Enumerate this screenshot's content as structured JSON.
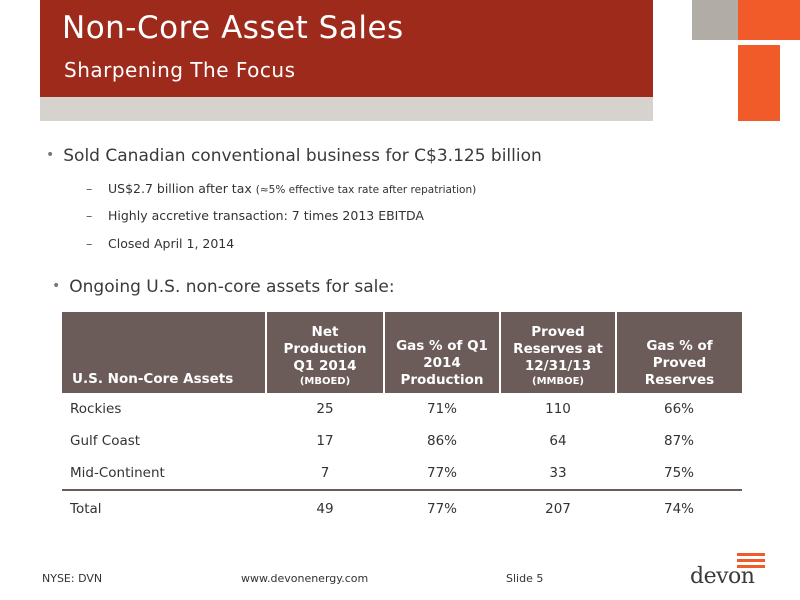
{
  "header": {
    "title": "Non-Core Asset Sales",
    "subtitle": "Sharpening The Focus"
  },
  "bullets": [
    {
      "text": "Sold Canadian conventional business for C$3.125 billion",
      "subitems": [
        {
          "text": "US$2.7 billion after tax",
          "note": "(≈5% effective tax rate after repatriation)"
        },
        {
          "text": "Highly accretive transaction: 7 times 2013 EBITDA",
          "note": ""
        },
        {
          "text": "Closed April 1, 2014",
          "note": ""
        }
      ]
    },
    {
      "text": "Ongoing U.S. non-core assets for sale:",
      "subitems": []
    }
  ],
  "table": {
    "headers": [
      {
        "label": "U.S. Non-Core Assets",
        "unit": ""
      },
      {
        "label": "Net Production Q1 2014",
        "unit": "(MBOED)"
      },
      {
        "label": "Gas % of Q1 2014 Production",
        "unit": ""
      },
      {
        "label": "Proved Reserves at 12/31/13",
        "unit": "(MMBOE)"
      },
      {
        "label": "Gas % of Proved Reserves",
        "unit": ""
      }
    ],
    "rows": [
      [
        "Rockies",
        "25",
        "71%",
        "110",
        "66%"
      ],
      [
        "Gulf Coast",
        "17",
        "86%",
        "64",
        "87%"
      ],
      [
        "Mid-Continent",
        "7",
        "77%",
        "33",
        "75%"
      ]
    ],
    "total": [
      "Total",
      "49",
      "77%",
      "207",
      "74%"
    ]
  },
  "footer": {
    "ticker": "NYSE: DVN",
    "url": "www.devonenergy.com",
    "slide": "Slide 5"
  },
  "logo": {
    "text": "devon"
  },
  "colors": {
    "header_red": "#9e2a1c",
    "accent_orange": "#f15a29",
    "table_header": "#6b5c5a"
  }
}
